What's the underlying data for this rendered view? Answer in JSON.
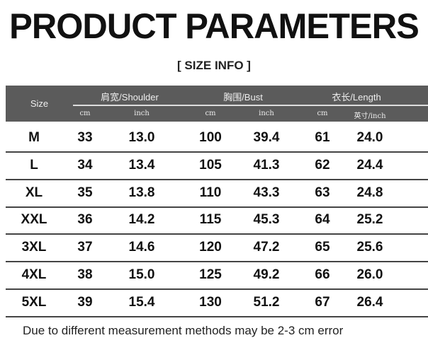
{
  "title": "PRODUCT PARAMETERS",
  "subtitle": "[ SIZE INFO ]",
  "header": {
    "size": "Size",
    "shoulder": "肩宽/Shoulder",
    "bust": "胸围/Bust",
    "length": "衣长/Length",
    "units": [
      "cm",
      "inch",
      "cm",
      "inch",
      "cm",
      "英寸/inch"
    ]
  },
  "rows": [
    [
      "M",
      "33",
      "13.0",
      "100",
      "39.4",
      "61",
      "24.0"
    ],
    [
      "L",
      "34",
      "13.4",
      "105",
      "41.3",
      "62",
      "24.4"
    ],
    [
      "XL",
      "35",
      "13.8",
      "110",
      "43.3",
      "63",
      "24.8"
    ],
    [
      "XXL",
      "36",
      "14.2",
      "115",
      "45.3",
      "64",
      "25.2"
    ],
    [
      "3XL",
      "37",
      "14.6",
      "120",
      "47.2",
      "65",
      "25.6"
    ],
    [
      "4XL",
      "38",
      "15.0",
      "125",
      "49.2",
      "66",
      "26.0"
    ],
    [
      "5XL",
      "39",
      "15.4",
      "130",
      "51.2",
      "67",
      "26.4"
    ]
  ],
  "note": "Due to different measurement methods may be 2-3 cm error"
}
